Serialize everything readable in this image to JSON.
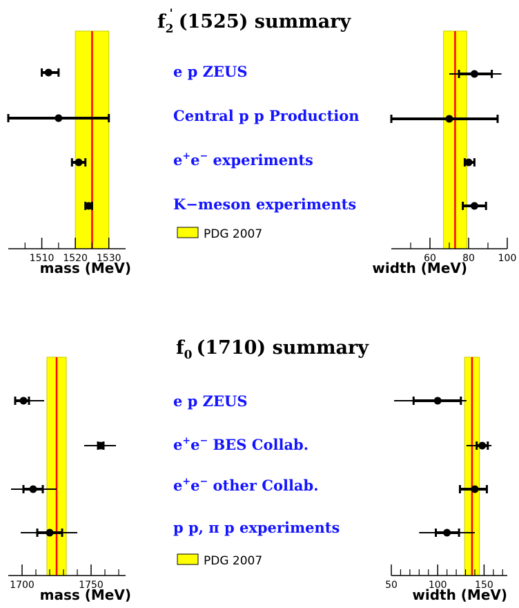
{
  "colors": {
    "band": "#ffff00",
    "band_edge": "#c8c800",
    "center": "#ff0000",
    "label": "#1414ff",
    "marker": "#000000"
  },
  "sections": [
    {
      "title": "(1525) summary",
      "title_sym": "f",
      "title_sub": "2",
      "title_sup": "'",
      "legend": "PDG 2007",
      "labels": [
        {
          "pre": "e p ZEUS",
          "sup1": "",
          "mid": "",
          "sup2": "",
          "post": ""
        },
        {
          "pre": "Central p p Production",
          "sup1": "",
          "mid": "",
          "sup2": "",
          "post": ""
        },
        {
          "pre": "e",
          "sup1": "+",
          "mid": "e",
          "sup2": "−",
          "post": " experiments"
        },
        {
          "pre": "K−meson experiments",
          "sup1": "",
          "mid": "",
          "sup2": "",
          "post": ""
        }
      ]
    },
    {
      "title": "(1710) summary",
      "title_sym": "f",
      "title_sub": "0",
      "title_sup": "",
      "legend": "PDG 2007",
      "labels": [
        {
          "pre": "e p ZEUS",
          "sup1": "",
          "mid": "",
          "sup2": "",
          "post": ""
        },
        {
          "pre": "e",
          "sup1": "+",
          "mid": "e",
          "sup2": "−",
          "post": " BES Collab."
        },
        {
          "pre": "e",
          "sup1": "+",
          "mid": "e",
          "sup2": "−",
          "post": " other Collab."
        },
        {
          "pre": "p p, π p experiments",
          "sup1": "",
          "mid": "",
          "sup2": "",
          "post": ""
        }
      ]
    }
  ],
  "chart_data": [
    {
      "type": "scatter",
      "title": "f2'(1525) summary",
      "xlabel": "mass (MeV)",
      "xlim": [
        1500,
        1535
      ],
      "tick_labels": [
        "1510",
        "1520",
        "1530"
      ],
      "tick_values": [
        1510,
        1520,
        1530
      ],
      "minor_ticks": [
        1505,
        1515,
        1525
      ],
      "band": [
        1520,
        1530
      ],
      "central": 1525,
      "points": [
        {
          "name": "e p ZEUS",
          "value": 1512,
          "stat": [
            1510,
            1515
          ],
          "syst": [
            1510,
            1515
          ]
        },
        {
          "name": "Central p p Production",
          "value": 1515,
          "stat": [
            1500,
            1530
          ],
          "syst": [
            1500,
            1530
          ]
        },
        {
          "name": "e+e- experiments",
          "value": 1521,
          "stat": [
            1519,
            1523
          ],
          "syst": [
            1519,
            1523
          ]
        },
        {
          "name": "K-meson experiments",
          "value": 1524,
          "stat": [
            1523,
            1525
          ],
          "syst": [
            1523,
            1525
          ]
        }
      ]
    },
    {
      "type": "scatter",
      "title": "f2'(1525) summary",
      "xlabel": "width (MeV)",
      "xlim": [
        40,
        100
      ],
      "tick_labels": [
        "60",
        "80",
        "100"
      ],
      "tick_values": [
        60,
        80,
        100
      ],
      "minor_ticks": [
        50,
        70,
        90
      ],
      "band": [
        67,
        79
      ],
      "central": 73,
      "points": [
        {
          "name": "e p ZEUS",
          "value": 83,
          "stat": [
            75,
            92
          ],
          "syst": [
            70,
            97
          ]
        },
        {
          "name": "Central p p Production",
          "value": 70,
          "stat": [
            40,
            95
          ],
          "syst": [
            40,
            95
          ]
        },
        {
          "name": "e+e- experiments",
          "value": 80,
          "stat": [
            78,
            83
          ],
          "syst": [
            78,
            83
          ]
        },
        {
          "name": "K-meson experiments",
          "value": 83,
          "stat": [
            77,
            89
          ],
          "syst": [
            77,
            89
          ]
        }
      ]
    },
    {
      "type": "scatter",
      "title": "f0(1710) summary",
      "xlabel": "mass (MeV)",
      "xlim": [
        1690,
        1775
      ],
      "tick_labels": [
        "1700",
        "1750"
      ],
      "tick_values": [
        1700,
        1750
      ],
      "minor_ticks": [
        1710,
        1720,
        1730,
        1740,
        1760,
        1770
      ],
      "band": [
        1718,
        1732
      ],
      "central": 1725,
      "points": [
        {
          "name": "e p ZEUS",
          "value": 1701,
          "stat": [
            1695,
            1705
          ],
          "syst": [
            1695,
            1716
          ]
        },
        {
          "name": "e+e- BES Collab.",
          "value": 1757,
          "stat": [
            1755,
            1759
          ],
          "syst": [
            1745,
            1768
          ]
        },
        {
          "name": "e+e- other Collab.",
          "value": 1708,
          "stat": [
            1701,
            1715
          ],
          "syst": [
            1692,
            1725
          ]
        },
        {
          "name": "pp, pi p experiments",
          "value": 1720,
          "stat": [
            1711,
            1729
          ],
          "syst": [
            1699,
            1740
          ]
        }
      ]
    },
    {
      "type": "scatter",
      "title": "f0(1710) summary",
      "xlabel": "width (MeV)",
      "xlim": [
        50,
        175
      ],
      "tick_labels": [
        "50",
        "100",
        "150"
      ],
      "tick_values": [
        50,
        100,
        150
      ],
      "minor_ticks": [
        60,
        70,
        80,
        90,
        110,
        120,
        130,
        140,
        160,
        170
      ],
      "band": [
        129,
        145
      ],
      "central": 137,
      "points": [
        {
          "name": "e p ZEUS",
          "value": 100,
          "stat": [
            74,
            125
          ],
          "syst": [
            53,
            131
          ]
        },
        {
          "name": "e+e- BES Collab.",
          "value": 148,
          "stat": [
            142,
            154
          ],
          "syst": [
            131,
            158
          ]
        },
        {
          "name": "e+e- other Collab.",
          "value": 140,
          "stat": [
            124,
            153
          ],
          "syst": [
            124,
            153
          ]
        },
        {
          "name": "pp, pi p experiments",
          "value": 110,
          "stat": [
            98,
            123
          ],
          "syst": [
            80,
            140
          ]
        }
      ]
    }
  ]
}
